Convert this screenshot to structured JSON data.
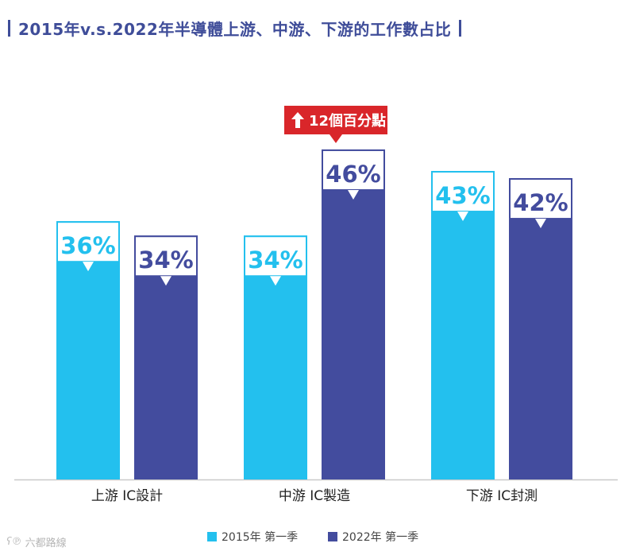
{
  "title": "2015年v.s.2022年半導體上游、中游、下游的工作數占比",
  "colors": {
    "series1": "#23c0ee",
    "series2": "#434c9e",
    "annotation": "#d9262a",
    "title": "#3f4d99",
    "axis": "#c9c9c9"
  },
  "chart_data": {
    "type": "bar",
    "title": "2015年v.s.2022年半導體上游、中游、下游的工作數占比",
    "categories": [
      "上游  IC設計",
      "中游  IC製造",
      "下游  IC封測"
    ],
    "series": [
      {
        "name": "2015年 第一季",
        "values": [
          36,
          34,
          43
        ],
        "labels": [
          "36%",
          "34%",
          "43%"
        ]
      },
      {
        "name": "2022年 第一季",
        "values": [
          34,
          46,
          42
        ],
        "labels": [
          "34%",
          "46%",
          "42%"
        ]
      }
    ],
    "ylim": [
      0,
      57.3
    ],
    "xlabel": "",
    "ylabel": "",
    "legend_position": "bottom-center",
    "annotation": {
      "text": "12個百分點",
      "icon": "arrow-up-icon",
      "category_index": 1,
      "series_index": 1
    }
  },
  "watermark": {
    "text": "六都路線",
    "icon": "logo-icon"
  }
}
